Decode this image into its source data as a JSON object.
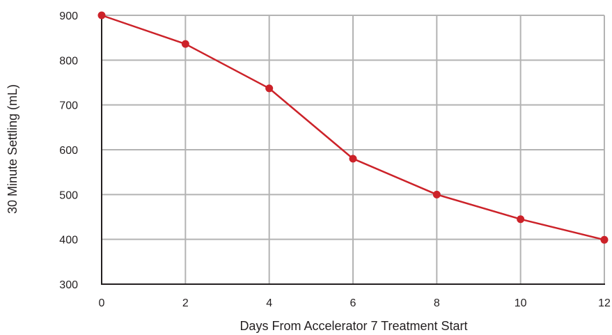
{
  "chart_data": {
    "type": "line",
    "title": "",
    "xlabel": "Days From Accelerator 7 Treatment Start",
    "ylabel": "30 Minute Settling (mL)",
    "x": [
      0,
      2,
      4,
      6,
      8,
      10,
      12
    ],
    "series": [
      {
        "values": [
          900,
          836,
          737,
          580,
          500,
          445,
          399
        ]
      }
    ],
    "xlim": [
      0,
      12
    ],
    "ylim": [
      300,
      900
    ],
    "xticks": [
      "0",
      "2",
      "4",
      "6",
      "8",
      "10",
      "12"
    ],
    "yticks": [
      "300",
      "400",
      "500",
      "600",
      "700",
      "800",
      "900"
    ],
    "grid": true,
    "colors": {
      "line": "#cc2229",
      "marker": "#cc2229",
      "grid": "#b3b3b3",
      "axis": "#231f20"
    }
  }
}
